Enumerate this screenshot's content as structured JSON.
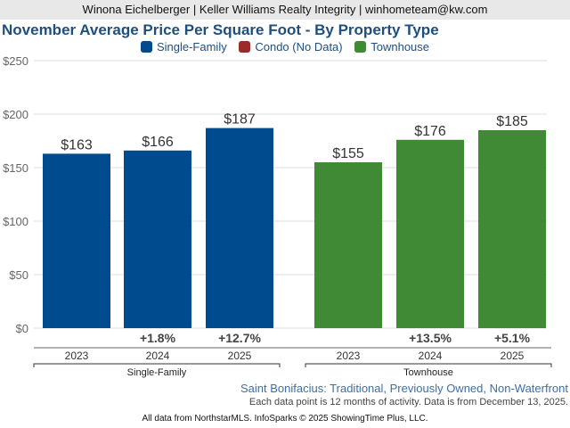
{
  "header": {
    "agent_line": "Winona Eichelberger | Keller Williams Realty Integrity | winhometeam@kw.com"
  },
  "colors": {
    "single_family": "#004b8d",
    "condo": "#9b2a2a",
    "townhouse": "#418a35"
  },
  "chart_data": {
    "type": "bar",
    "title": "November Average Price Per Square Foot - By Property Type",
    "xlabel": "",
    "ylabel": "",
    "ylim": [
      0,
      250
    ],
    "yticks": [
      0,
      50,
      100,
      150,
      200,
      250
    ],
    "ytick_labels": [
      "$0",
      "$50",
      "$100",
      "$150",
      "$200",
      "$250"
    ],
    "grid": true,
    "legend": [
      {
        "name": "Single-Family",
        "color": "#004b8d"
      },
      {
        "name": "Condo (No Data)",
        "color": "#9b2a2a"
      },
      {
        "name": "Townhouse",
        "color": "#418a35"
      }
    ],
    "legend_position": "top-center",
    "groups": [
      {
        "name": "Single-Family",
        "color": "#004b8d",
        "categories": [
          "2023",
          "2024",
          "2025"
        ],
        "values": [
          163,
          166,
          187
        ],
        "value_labels": [
          "$163",
          "$166",
          "$187"
        ],
        "change_labels": [
          "",
          "+1.8%",
          "+12.7%"
        ]
      },
      {
        "name": "Townhouse",
        "color": "#418a35",
        "categories": [
          "2023",
          "2024",
          "2025"
        ],
        "values": [
          155,
          176,
          185
        ],
        "value_labels": [
          "$155",
          "$176",
          "$185"
        ],
        "change_labels": [
          "",
          "+13.5%",
          "+5.1%"
        ]
      }
    ]
  },
  "footer": {
    "area": "Saint Bonifacius: Traditional, Previously Owned, Non-Waterfront",
    "note": "Each data point is 12 months of activity. Data is from December 13, 2025.",
    "copyright": "All data from NorthstarMLS. InfoSparks © 2025 ShowingTime Plus, LLC."
  }
}
